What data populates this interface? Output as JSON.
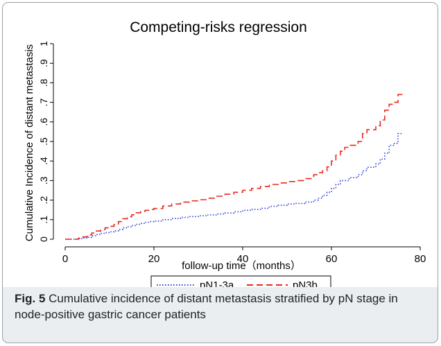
{
  "chart_data": {
    "type": "line",
    "title": "Competing-risks regression",
    "xlabel": "follow-up time（months）",
    "ylabel": "Cumulative Incidence of distant metastasis",
    "xlim": [
      0,
      80
    ],
    "ylim": [
      0,
      1
    ],
    "xticks": [
      "0",
      "20",
      "40",
      "60",
      "80"
    ],
    "yticks": [
      "0",
      ".1",
      ".2",
      ".3",
      ".4",
      ".5",
      ".6",
      ".7",
      ".8",
      ".9",
      "1"
    ],
    "grid": false,
    "legend_position": "bottom",
    "series": [
      {
        "name": "pN1-3a",
        "color": "#2b3bd6",
        "style": "dotted",
        "points": [
          [
            0,
            0
          ],
          [
            2,
            0
          ],
          [
            3,
            0.003
          ],
          [
            4,
            0.006
          ],
          [
            5,
            0.01
          ],
          [
            6,
            0.018
          ],
          [
            7,
            0.024
          ],
          [
            8,
            0.03
          ],
          [
            9,
            0.034
          ],
          [
            10,
            0.038
          ],
          [
            11,
            0.043
          ],
          [
            12,
            0.05
          ],
          [
            13,
            0.058
          ],
          [
            14,
            0.064
          ],
          [
            15,
            0.07
          ],
          [
            16,
            0.076
          ],
          [
            17,
            0.081
          ],
          [
            18,
            0.087
          ],
          [
            19,
            0.09
          ],
          [
            20,
            0.093
          ],
          [
            22,
            0.1
          ],
          [
            24,
            0.106
          ],
          [
            26,
            0.112
          ],
          [
            28,
            0.116
          ],
          [
            30,
            0.12
          ],
          [
            32,
            0.124
          ],
          [
            34,
            0.129
          ],
          [
            36,
            0.134
          ],
          [
            38,
            0.14
          ],
          [
            40,
            0.148
          ],
          [
            42,
            0.153
          ],
          [
            44,
            0.158
          ],
          [
            46,
            0.168
          ],
          [
            48,
            0.174
          ],
          [
            50,
            0.18
          ],
          [
            52,
            0.183
          ],
          [
            54,
            0.19
          ],
          [
            56,
            0.2
          ],
          [
            57,
            0.21
          ],
          [
            58,
            0.225
          ],
          [
            59,
            0.24
          ],
          [
            60,
            0.26
          ],
          [
            61,
            0.28
          ],
          [
            62,
            0.3
          ],
          [
            64,
            0.315
          ],
          [
            66,
            0.33
          ],
          [
            67,
            0.35
          ],
          [
            68,
            0.368
          ],
          [
            70,
            0.385
          ],
          [
            71,
            0.41
          ],
          [
            72,
            0.44
          ],
          [
            73,
            0.48
          ],
          [
            74,
            0.49
          ],
          [
            75,
            0.54
          ],
          [
            76,
            0.54
          ]
        ]
      },
      {
        "name": "pN3b",
        "color": "#e8281e",
        "style": "dashed",
        "points": [
          [
            0,
            0
          ],
          [
            2,
            0
          ],
          [
            3,
            0.005
          ],
          [
            4,
            0.012
          ],
          [
            5,
            0.022
          ],
          [
            6,
            0.032
          ],
          [
            7,
            0.042
          ],
          [
            8,
            0.05
          ],
          [
            9,
            0.058
          ],
          [
            10,
            0.066
          ],
          [
            11,
            0.075
          ],
          [
            12,
            0.09
          ],
          [
            13,
            0.105
          ],
          [
            14,
            0.115
          ],
          [
            15,
            0.125
          ],
          [
            16,
            0.135
          ],
          [
            17,
            0.142
          ],
          [
            18,
            0.148
          ],
          [
            19,
            0.152
          ],
          [
            20,
            0.157
          ],
          [
            22,
            0.17
          ],
          [
            24,
            0.18
          ],
          [
            26,
            0.19
          ],
          [
            28,
            0.196
          ],
          [
            30,
            0.202
          ],
          [
            32,
            0.21
          ],
          [
            34,
            0.22
          ],
          [
            36,
            0.23
          ],
          [
            38,
            0.24
          ],
          [
            40,
            0.25
          ],
          [
            42,
            0.26
          ],
          [
            44,
            0.27
          ],
          [
            46,
            0.28
          ],
          [
            48,
            0.288
          ],
          [
            50,
            0.295
          ],
          [
            52,
            0.3
          ],
          [
            54,
            0.31
          ],
          [
            56,
            0.33
          ],
          [
            57,
            0.34
          ],
          [
            58,
            0.35
          ],
          [
            59,
            0.37
          ],
          [
            60,
            0.4
          ],
          [
            61,
            0.43
          ],
          [
            62,
            0.45
          ],
          [
            63,
            0.47
          ],
          [
            64,
            0.48
          ],
          [
            66,
            0.5
          ],
          [
            67,
            0.54
          ],
          [
            68,
            0.56
          ],
          [
            70,
            0.58
          ],
          [
            71,
            0.61
          ],
          [
            72,
            0.66
          ],
          [
            73,
            0.69
          ],
          [
            74,
            0.7
          ],
          [
            75,
            0.74
          ],
          [
            76,
            0.74
          ]
        ]
      }
    ]
  },
  "caption": {
    "label": "Fig. 5",
    "text": " Cumulative incidence of distant metastasis stratified by pN stage in node-positive gastric cancer patients"
  },
  "colors": {
    "plot_background": "#ffffff",
    "figure_background": "#eaeef1",
    "border": "#9aa0a6"
  }
}
